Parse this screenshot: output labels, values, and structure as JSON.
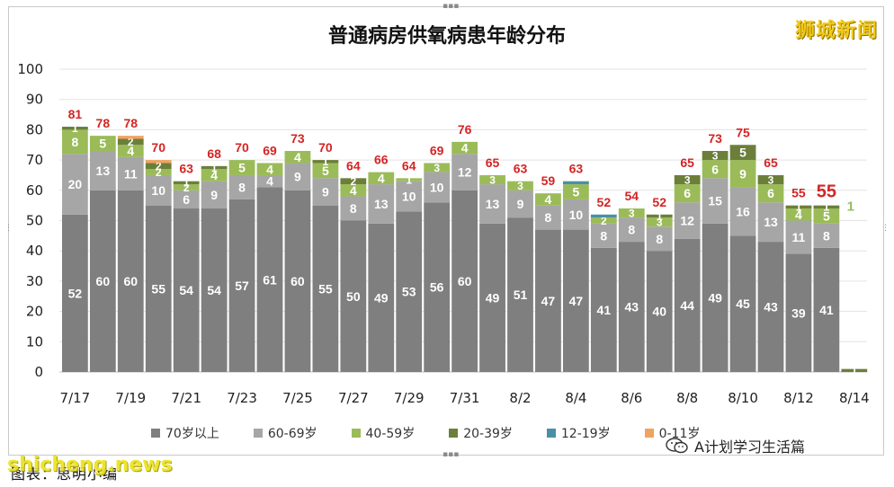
{
  "title": "普通病房供氧病患年龄分布",
  "brand": "狮城新闻",
  "watermark": "shicheng.news",
  "footer_note": "图表：思明小编",
  "wechat_label": "A计划学习生活篇",
  "colors": {
    "70+": "#7f7f7f",
    "60-69": "#a6a6a6",
    "40-59": "#9bbb59",
    "20-39": "#6b7f3a",
    "12-19": "#4a90a4",
    "0-11": "#f0a35e",
    "total_label": "#d42424",
    "brand": "#f2c916",
    "watermark": "#ece21c"
  },
  "chart_data": {
    "type": "bar",
    "stacked": true,
    "title": "普通病房供氧病患年龄分布",
    "ylim": [
      0,
      100
    ],
    "yticks": [
      0,
      10,
      20,
      30,
      40,
      50,
      60,
      70,
      80,
      90,
      100
    ],
    "grid": true,
    "legend_position": "bottom",
    "categories": [
      "7/17",
      "7/18",
      "7/19",
      "7/20",
      "7/21",
      "7/22",
      "7/23",
      "7/24",
      "7/25",
      "7/26",
      "7/27",
      "7/28",
      "7/29",
      "7/30",
      "7/31",
      "8/1",
      "8/2",
      "8/3",
      "8/4",
      "8/5",
      "8/6",
      "8/7",
      "8/8",
      "8/9",
      "8/10",
      "8/11",
      "8/12",
      "8/13",
      "8/14"
    ],
    "xtick_labels": [
      "7/17",
      "",
      "7/19",
      "",
      "7/21",
      "",
      "7/23",
      "",
      "7/25",
      "",
      "7/27",
      "",
      "7/29",
      "",
      "7/31",
      "",
      "8/2",
      "",
      "8/4",
      "",
      "8/6",
      "",
      "8/8",
      "",
      "8/10",
      "",
      "8/12",
      "",
      "8/14"
    ],
    "series": [
      {
        "name": "70岁以上",
        "key": "70+",
        "values": [
          52,
          60,
          60,
          55,
          54,
          54,
          57,
          61,
          60,
          55,
          50,
          49,
          53,
          56,
          60,
          49,
          51,
          47,
          47,
          41,
          43,
          40,
          44,
          49,
          45,
          43,
          39,
          41,
          0
        ]
      },
      {
        "name": "60-69岁",
        "key": "60-69",
        "values": [
          20,
          13,
          11,
          10,
          6,
          9,
          8,
          4,
          9,
          9,
          8,
          13,
          10,
          10,
          12,
          13,
          9,
          8,
          10,
          8,
          8,
          8,
          12,
          15,
          16,
          13,
          11,
          8,
          0
        ]
      },
      {
        "name": "40-59岁",
        "key": "40-59",
        "values": [
          8,
          5,
          4,
          2,
          2,
          4,
          5,
          4,
          4,
          5,
          4,
          4,
          1,
          3,
          4,
          3,
          3,
          4,
          5,
          2,
          3,
          3,
          6,
          6,
          9,
          6,
          4,
          5,
          0
        ]
      },
      {
        "name": "20-39岁",
        "key": "20-39",
        "values": [
          1,
          0,
          2,
          2,
          1,
          1,
          0,
          0,
          0,
          1,
          2,
          0,
          0,
          0,
          0,
          0,
          0,
          0,
          0,
          0,
          0,
          1,
          3,
          3,
          5,
          3,
          1,
          1,
          1
        ]
      },
      {
        "name": "12-19岁",
        "key": "12-19",
        "values": [
          0,
          0,
          0,
          0,
          0,
          0,
          0,
          0,
          0,
          0,
          0,
          0,
          0,
          0,
          0,
          0,
          0,
          0,
          1,
          1,
          0,
          0,
          0,
          0,
          0,
          0,
          0,
          0,
          0
        ]
      },
      {
        "name": "0-11岁",
        "key": "0-11",
        "values": [
          0,
          0,
          1,
          1,
          0,
          0,
          0,
          0,
          0,
          0,
          0,
          0,
          0,
          0,
          0,
          0,
          0,
          0,
          0,
          0,
          0,
          0,
          0,
          0,
          0,
          0,
          0,
          0,
          0
        ]
      }
    ],
    "totals": [
      81,
      78,
      78,
      70,
      63,
      68,
      70,
      69,
      73,
      70,
      64,
      66,
      64,
      69,
      76,
      65,
      63,
      59,
      63,
      52,
      54,
      52,
      65,
      73,
      75,
      65,
      55,
      55,
      null
    ],
    "highlight_total_index": 27
  }
}
